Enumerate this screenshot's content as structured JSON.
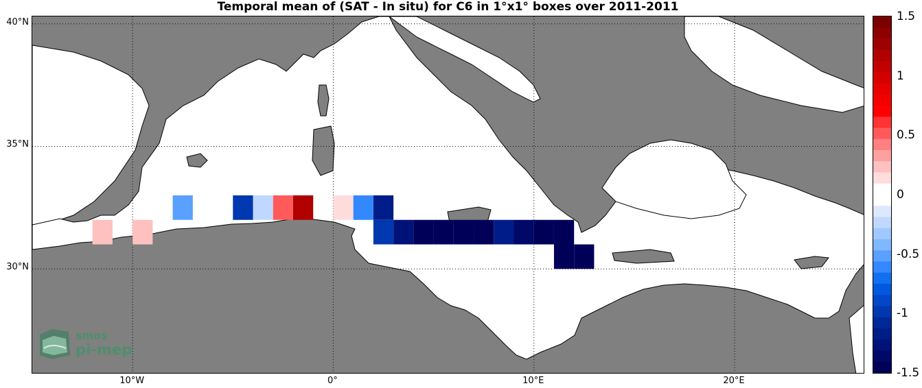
{
  "title": "Temporal mean of (SAT - In situ) for C6 in 1°x1° boxes over 2011-2011",
  "map": {
    "lon_range": [
      -15,
      26.5
    ],
    "lat_range": [
      25.7,
      40.3
    ],
    "lat_ticks": [
      {
        "value": 40,
        "label": "40°N"
      },
      {
        "value": 35,
        "label": "35°N"
      },
      {
        "value": 30,
        "label": "30°N"
      }
    ],
    "lon_ticks": [
      {
        "value": -10,
        "label": "10°W"
      },
      {
        "value": 0,
        "label": "0°"
      },
      {
        "value": 10,
        "label": "10°E"
      },
      {
        "value": 20,
        "label": "20°E"
      }
    ],
    "land_color": "#808080",
    "sea_color": "#ffffff",
    "grid": "dotted"
  },
  "colorbar": {
    "range": [
      -1.5,
      1.5
    ],
    "ticks": [
      "1.5",
      "1",
      "0.5",
      "0",
      "-0.5",
      "-1",
      "-1.5"
    ],
    "colors": [
      "#7a0000",
      "#8c0000",
      "#9e0000",
      "#b00000",
      "#c20000",
      "#d40000",
      "#e60000",
      "#f20000",
      "#ff0000",
      "#ff3333",
      "#ff5a5a",
      "#ff8080",
      "#ffa0a0",
      "#ffc0c0",
      "#ffdddd",
      "#ffffff",
      "#ffffff",
      "#dde8ff",
      "#c0d8ff",
      "#a0c8ff",
      "#80b8ff",
      "#5aa0ff",
      "#3388ff",
      "#1070f0",
      "#0058e0",
      "#0048c8",
      "#0038b0",
      "#002898",
      "#001c88",
      "#001278",
      "#000868",
      "#000058"
    ]
  },
  "chart_data": {
    "type": "heatmap",
    "title": "Temporal mean of (SAT - In situ) for C6 in 1°x1° boxes over 2011-2011",
    "cell_size_deg": 1,
    "cells": [
      {
        "lon": -12.0,
        "lat": 31.5,
        "value": 0.25
      },
      {
        "lon": -10.0,
        "lat": 31.5,
        "value": 0.25
      },
      {
        "lon": -8.0,
        "lat": 32.5,
        "value": -0.55
      },
      {
        "lon": -5.0,
        "lat": 32.5,
        "value": -1.0
      },
      {
        "lon": -4.0,
        "lat": 32.5,
        "value": -0.2
      },
      {
        "lon": -3.0,
        "lat": 32.5,
        "value": 0.5
      },
      {
        "lon": -2.0,
        "lat": 32.5,
        "value": 1.2
      },
      {
        "lon": 0.0,
        "lat": 32.5,
        "value": 0.15
      },
      {
        "lon": 1.0,
        "lat": 32.5,
        "value": -0.6
      },
      {
        "lon": 2.0,
        "lat": 32.5,
        "value": -1.2
      },
      {
        "lon": 2.0,
        "lat": 31.5,
        "value": -1.0
      },
      {
        "lon": 3.0,
        "lat": 31.5,
        "value": -1.3
      },
      {
        "lon": 4.0,
        "lat": 31.5,
        "value": -1.5
      },
      {
        "lon": 5.0,
        "lat": 31.5,
        "value": -1.5
      },
      {
        "lon": 6.0,
        "lat": 31.5,
        "value": -1.5
      },
      {
        "lon": 7.0,
        "lat": 31.5,
        "value": -1.5
      },
      {
        "lon": 8.0,
        "lat": 31.5,
        "value": -1.15
      },
      {
        "lon": 9.0,
        "lat": 31.5,
        "value": -1.35
      },
      {
        "lon": 10.0,
        "lat": 31.5,
        "value": -1.5
      },
      {
        "lon": 11.0,
        "lat": 31.5,
        "value": -1.5
      },
      {
        "lon": 11.0,
        "lat": 30.5,
        "value": -1.45
      },
      {
        "lon": 12.0,
        "lat": 30.5,
        "value": -1.45
      }
    ]
  },
  "logo": {
    "line1": "smos",
    "line2": "pi-mep"
  }
}
